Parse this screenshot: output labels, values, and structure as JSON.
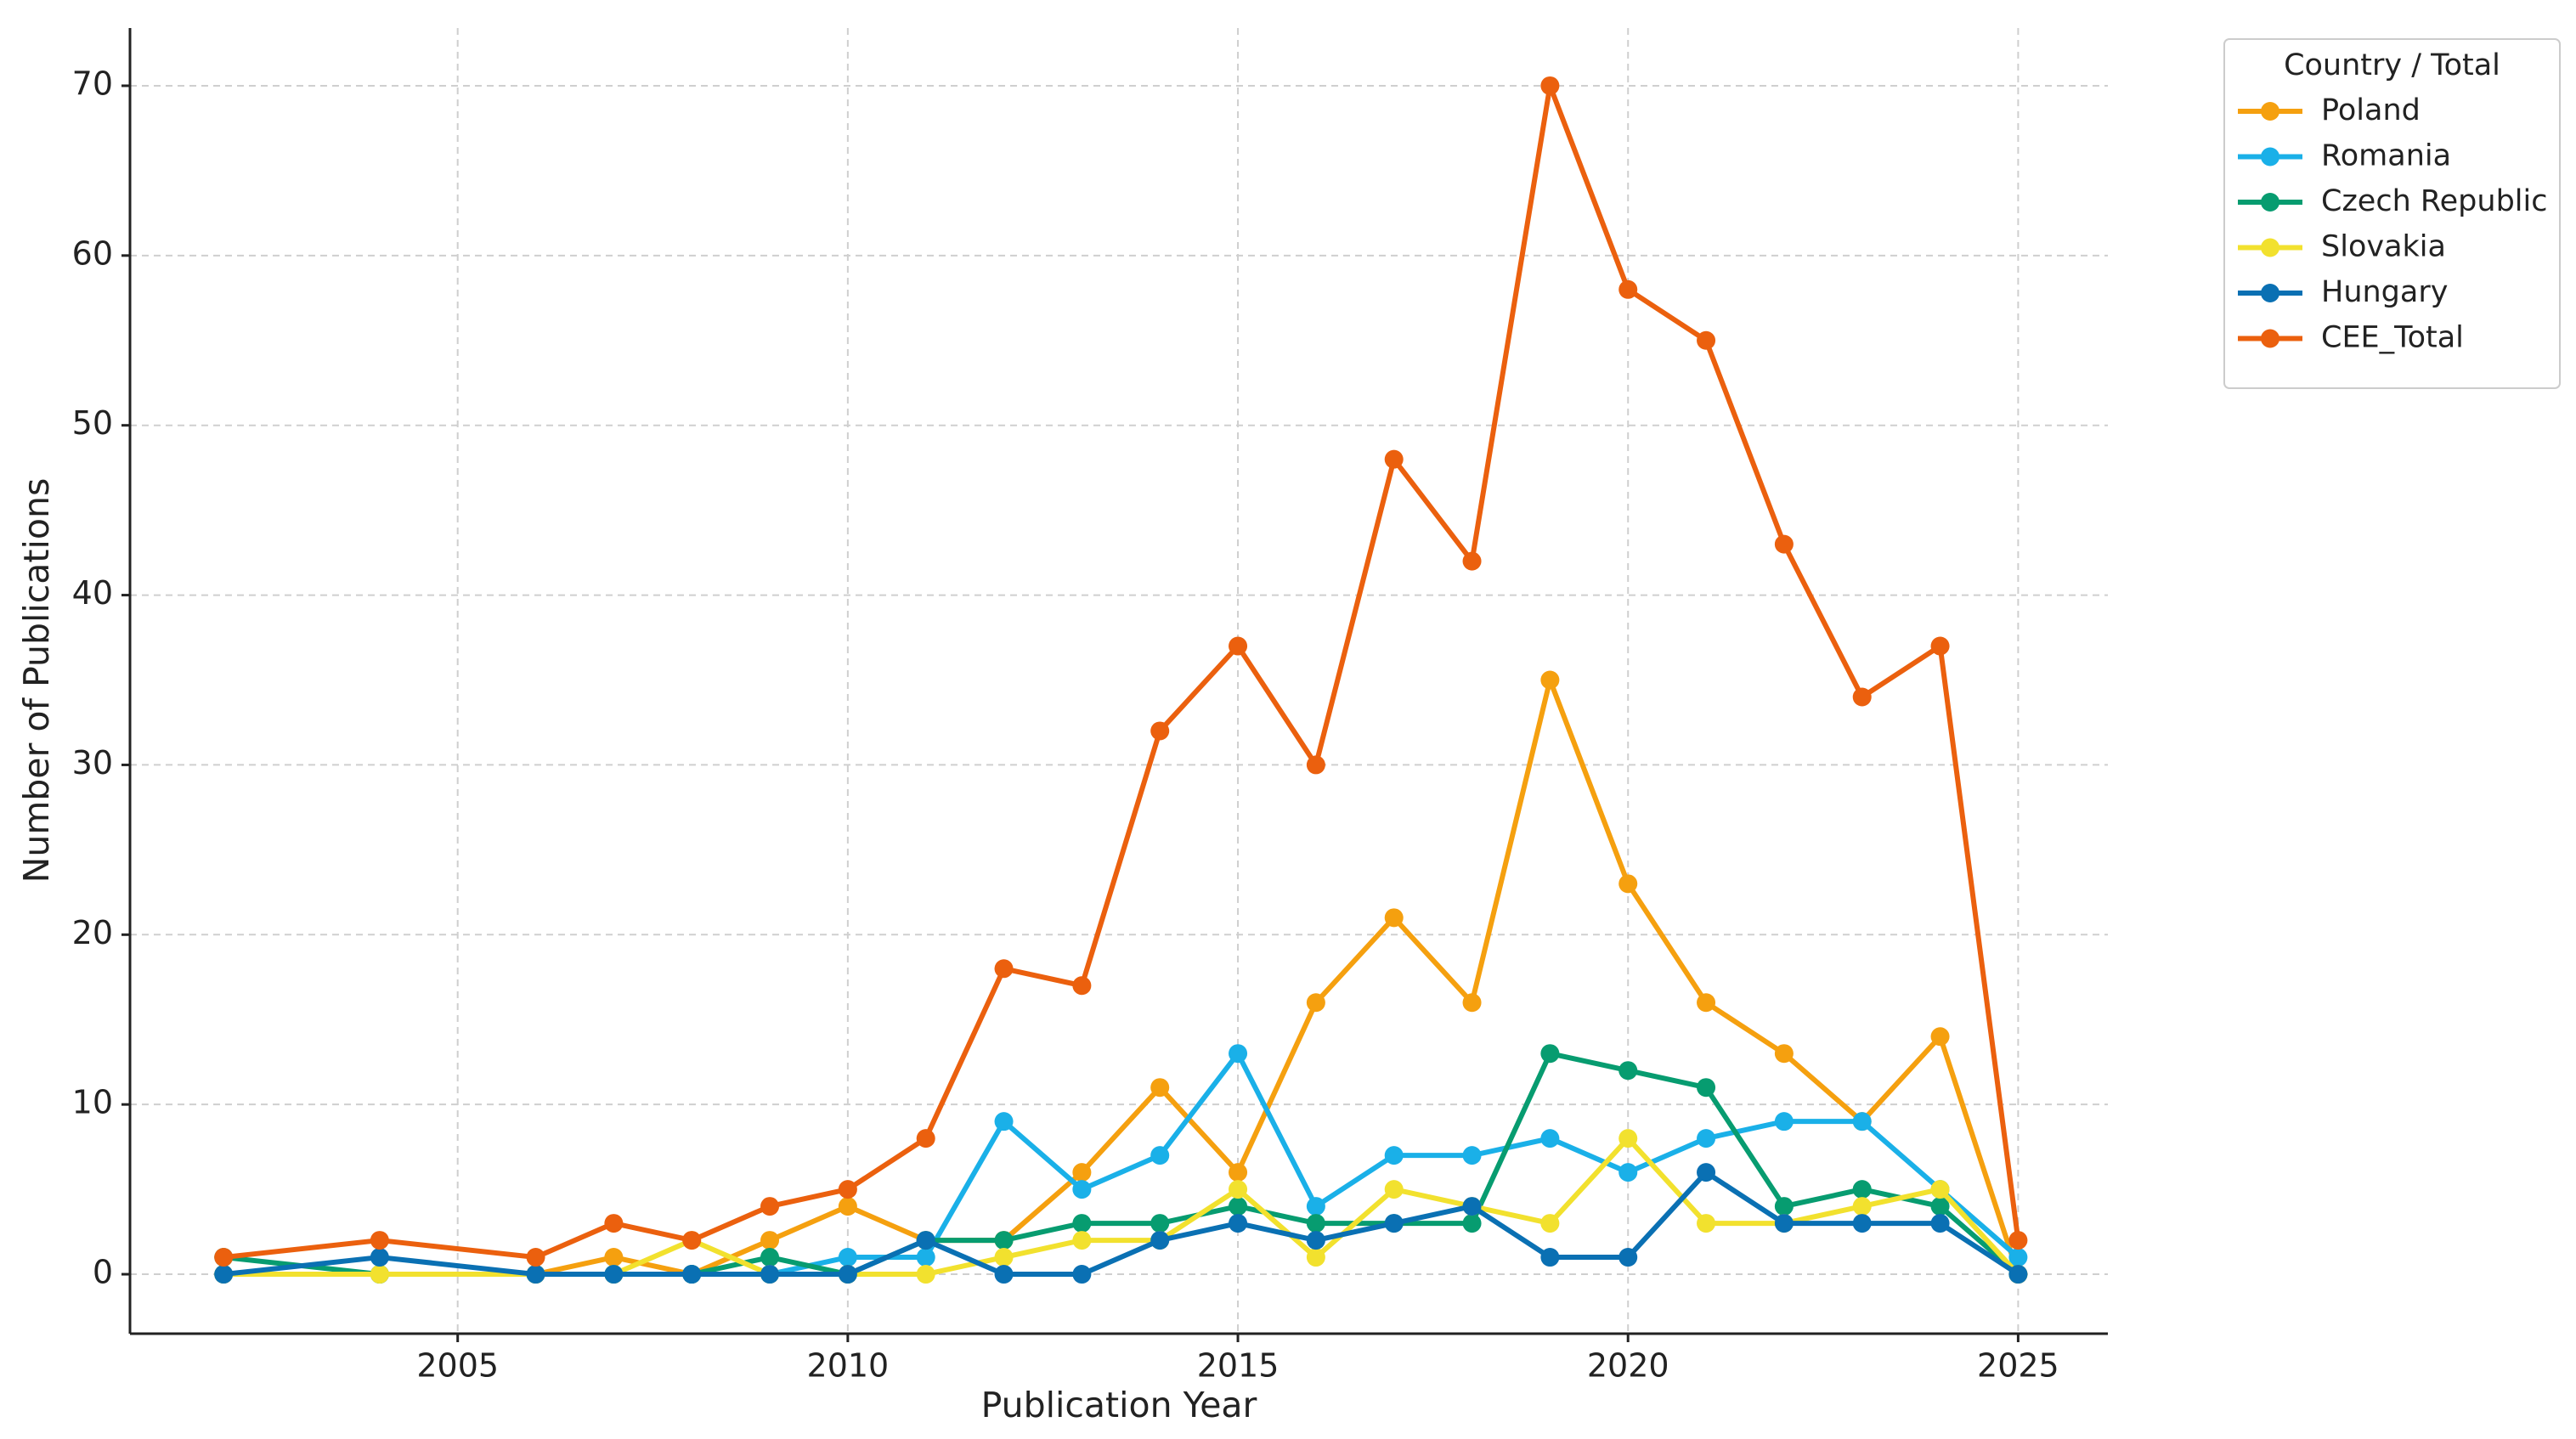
{
  "chart_data": {
    "type": "line",
    "x_label": "Publication Year",
    "y_label": "Number of Publications",
    "legend_title": "Country / Total",
    "legend_position": "outside upper right",
    "grid": true,
    "x": [
      2002,
      2004,
      2006,
      2007,
      2008,
      2009,
      2010,
      2011,
      2012,
      2013,
      2014,
      2015,
      2016,
      2017,
      2018,
      2019,
      2020,
      2021,
      2022,
      2023,
      2024,
      2025
    ],
    "xlim": [
      2000.8,
      2026.15
    ],
    "xticks": [
      2005,
      2010,
      2015,
      2020,
      2025
    ],
    "ylim": [
      -3.5,
      73.4
    ],
    "yticks": [
      0,
      10,
      20,
      30,
      40,
      50,
      60,
      70
    ],
    "series": [
      {
        "name": "Poland",
        "color": "#f5a00f",
        "values": [
          0,
          0,
          0,
          1,
          0,
          2,
          4,
          2,
          2,
          6,
          11,
          6,
          16,
          21,
          16,
          35,
          23,
          16,
          13,
          9,
          14,
          0
        ]
      },
      {
        "name": "Romania",
        "color": "#1ab0e8",
        "values": [
          0,
          0,
          0,
          0,
          0,
          0,
          1,
          1,
          9,
          5,
          7,
          13,
          4,
          7,
          7,
          8,
          6,
          8,
          9,
          9,
          5,
          1
        ]
      },
      {
        "name": "Czech Republic",
        "color": "#079c70",
        "values": [
          1,
          0,
          0,
          0,
          0,
          1,
          0,
          2,
          2,
          3,
          3,
          4,
          3,
          3,
          3,
          13,
          12,
          11,
          4,
          5,
          4,
          0
        ]
      },
      {
        "name": "Slovakia",
        "color": "#f2e12e",
        "values": [
          0,
          0,
          0,
          0,
          2,
          0,
          0,
          0,
          1,
          2,
          2,
          5,
          1,
          5,
          4,
          3,
          8,
          3,
          3,
          4,
          5,
          0
        ]
      },
      {
        "name": "Hungary",
        "color": "#0a70b3",
        "values": [
          0,
          1,
          0,
          0,
          0,
          0,
          0,
          2,
          0,
          0,
          2,
          3,
          2,
          3,
          4,
          1,
          1,
          6,
          3,
          3,
          3,
          0
        ]
      },
      {
        "name": "CEE_Total",
        "color": "#eb600e",
        "values": [
          1,
          2,
          1,
          3,
          2,
          4,
          5,
          8,
          18,
          17,
          32,
          37,
          30,
          48,
          42,
          70,
          58,
          55,
          43,
          34,
          37,
          2
        ]
      }
    ]
  }
}
